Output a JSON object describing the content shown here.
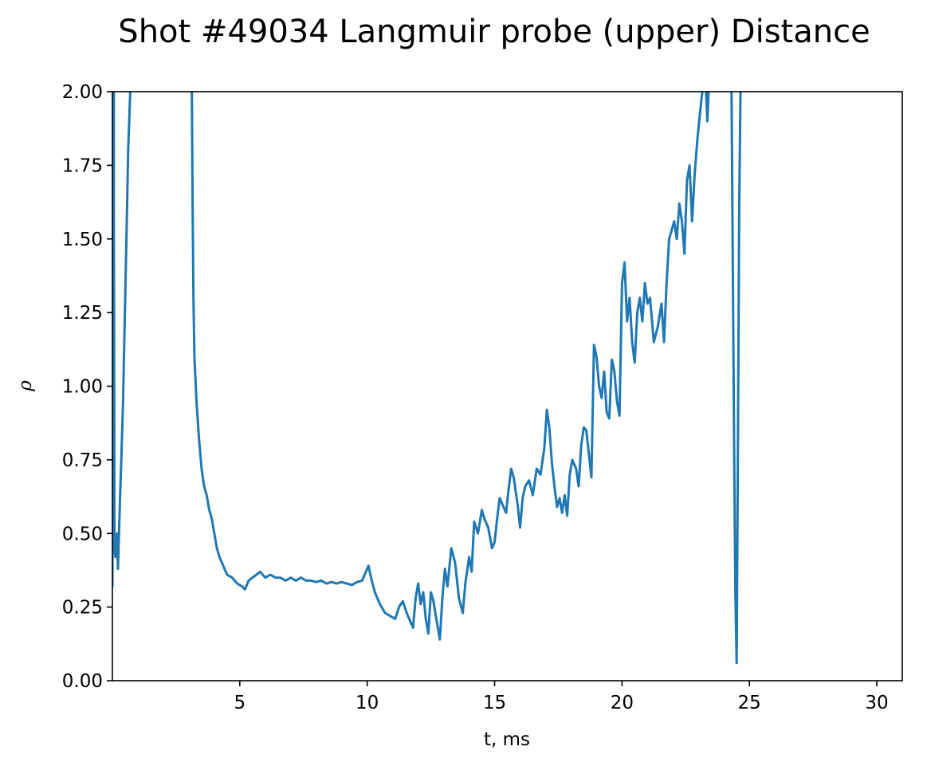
{
  "chart_data": {
    "type": "line",
    "title": "Shot #49034 Langmuir probe (upper) Distance",
    "xlabel": "t, ms",
    "ylabel": "ρ",
    "xlim": [
      0,
      31
    ],
    "ylim": [
      0,
      2
    ],
    "xticks": [
      5,
      10,
      15,
      20,
      25,
      30
    ],
    "yticks": [
      "0.00",
      "0.25",
      "0.50",
      "0.75",
      "1.00",
      "1.25",
      "1.50",
      "1.75",
      "2.00"
    ],
    "grid": false,
    "series": [
      {
        "color": "#1f77b4",
        "segments": [
          [
            [
              0.0,
              0.32
            ],
            [
              0.03,
              1.0
            ],
            [
              0.06,
              2.0
            ]
          ],
          [
            [
              0.05,
              2.0
            ],
            [
              0.08,
              0.45
            ],
            [
              0.12,
              0.42
            ],
            [
              0.18,
              0.5
            ],
            [
              0.22,
              0.38
            ],
            [
              0.26,
              0.5
            ],
            [
              0.3,
              0.62
            ],
            [
              0.35,
              0.75
            ],
            [
              0.42,
              0.95
            ],
            [
              0.48,
              1.2
            ],
            [
              0.55,
              1.5
            ],
            [
              0.62,
              1.8
            ],
            [
              0.7,
              2.0
            ]
          ],
          [
            [
              3.12,
              2.0
            ],
            [
              3.15,
              1.6
            ],
            [
              3.18,
              1.3
            ],
            [
              3.22,
              1.1
            ],
            [
              3.3,
              0.95
            ],
            [
              3.4,
              0.82
            ],
            [
              3.5,
              0.72
            ],
            [
              3.6,
              0.66
            ],
            [
              3.7,
              0.63
            ],
            [
              3.8,
              0.58
            ],
            [
              3.9,
              0.55
            ],
            [
              4.0,
              0.5
            ],
            [
              4.1,
              0.45
            ],
            [
              4.2,
              0.42
            ],
            [
              4.35,
              0.39
            ],
            [
              4.5,
              0.36
            ],
            [
              4.7,
              0.35
            ],
            [
              4.9,
              0.33
            ],
            [
              5.1,
              0.32
            ],
            [
              5.2,
              0.31
            ],
            [
              5.35,
              0.34
            ],
            [
              5.5,
              0.35
            ],
            [
              5.65,
              0.36
            ],
            [
              5.8,
              0.37
            ],
            [
              6.0,
              0.35
            ],
            [
              6.2,
              0.36
            ],
            [
              6.4,
              0.35
            ],
            [
              6.6,
              0.35
            ],
            [
              6.8,
              0.34
            ],
            [
              7.0,
              0.35
            ],
            [
              7.2,
              0.34
            ],
            [
              7.4,
              0.35
            ],
            [
              7.6,
              0.34
            ],
            [
              7.8,
              0.34
            ],
            [
              8.0,
              0.335
            ],
            [
              8.2,
              0.34
            ],
            [
              8.4,
              0.33
            ],
            [
              8.6,
              0.335
            ],
            [
              8.8,
              0.33
            ],
            [
              9.0,
              0.335
            ],
            [
              9.2,
              0.33
            ],
            [
              9.4,
              0.325
            ],
            [
              9.6,
              0.335
            ],
            [
              9.8,
              0.34
            ],
            [
              9.95,
              0.37
            ],
            [
              10.05,
              0.39
            ],
            [
              10.15,
              0.35
            ],
            [
              10.3,
              0.3
            ],
            [
              10.5,
              0.26
            ],
            [
              10.7,
              0.23
            ],
            [
              10.9,
              0.22
            ],
            [
              11.1,
              0.21
            ],
            [
              11.25,
              0.25
            ],
            [
              11.4,
              0.27
            ],
            [
              11.55,
              0.23
            ],
            [
              11.7,
              0.2
            ],
            [
              11.8,
              0.18
            ],
            [
              11.9,
              0.28
            ],
            [
              12.0,
              0.33
            ],
            [
              12.1,
              0.26
            ],
            [
              12.2,
              0.3
            ],
            [
              12.3,
              0.21
            ],
            [
              12.4,
              0.16
            ],
            [
              12.5,
              0.3
            ],
            [
              12.6,
              0.27
            ],
            [
              12.75,
              0.19
            ],
            [
              12.85,
              0.14
            ],
            [
              12.95,
              0.28
            ],
            [
              13.05,
              0.38
            ],
            [
              13.15,
              0.32
            ],
            [
              13.3,
              0.45
            ],
            [
              13.45,
              0.4
            ],
            [
              13.6,
              0.28
            ],
            [
              13.75,
              0.23
            ],
            [
              13.85,
              0.33
            ],
            [
              14.0,
              0.42
            ],
            [
              14.1,
              0.37
            ],
            [
              14.2,
              0.54
            ],
            [
              14.35,
              0.5
            ],
            [
              14.5,
              0.58
            ],
            [
              14.6,
              0.55
            ],
            [
              14.75,
              0.52
            ],
            [
              14.9,
              0.45
            ],
            [
              15.0,
              0.47
            ],
            [
              15.1,
              0.55
            ],
            [
              15.2,
              0.62
            ],
            [
              15.3,
              0.6
            ],
            [
              15.45,
              0.57
            ],
            [
              15.55,
              0.65
            ],
            [
              15.65,
              0.72
            ],
            [
              15.75,
              0.69
            ],
            [
              15.9,
              0.6
            ],
            [
              16.0,
              0.52
            ],
            [
              16.1,
              0.62
            ],
            [
              16.2,
              0.66
            ],
            [
              16.35,
              0.68
            ],
            [
              16.5,
              0.63
            ],
            [
              16.65,
              0.72
            ],
            [
              16.8,
              0.7
            ],
            [
              16.95,
              0.79
            ],
            [
              17.05,
              0.92
            ],
            [
              17.15,
              0.86
            ],
            [
              17.25,
              0.74
            ],
            [
              17.35,
              0.66
            ],
            [
              17.45,
              0.59
            ],
            [
              17.55,
              0.62
            ],
            [
              17.65,
              0.57
            ],
            [
              17.75,
              0.63
            ],
            [
              17.85,
              0.56
            ],
            [
              17.95,
              0.7
            ],
            [
              18.05,
              0.75
            ],
            [
              18.2,
              0.72
            ],
            [
              18.3,
              0.66
            ],
            [
              18.4,
              0.8
            ],
            [
              18.5,
              0.86
            ],
            [
              18.6,
              0.85
            ],
            [
              18.7,
              0.77
            ],
            [
              18.8,
              0.69
            ],
            [
              18.9,
              1.14
            ],
            [
              19.0,
              1.1
            ],
            [
              19.1,
              1.0
            ],
            [
              19.2,
              0.96
            ],
            [
              19.3,
              1.05
            ],
            [
              19.4,
              0.91
            ],
            [
              19.5,
              0.89
            ],
            [
              19.6,
              1.09
            ],
            [
              19.7,
              1.05
            ],
            [
              19.8,
              0.95
            ],
            [
              19.9,
              0.9
            ],
            [
              20.0,
              1.35
            ],
            [
              20.1,
              1.42
            ],
            [
              20.2,
              1.22
            ],
            [
              20.3,
              1.3
            ],
            [
              20.4,
              1.15
            ],
            [
              20.5,
              1.08
            ],
            [
              20.6,
              1.25
            ],
            [
              20.7,
              1.3
            ],
            [
              20.8,
              1.22
            ],
            [
              20.9,
              1.35
            ],
            [
              21.0,
              1.28
            ],
            [
              21.1,
              1.3
            ],
            [
              21.25,
              1.15
            ],
            [
              21.4,
              1.2
            ],
            [
              21.55,
              1.28
            ],
            [
              21.65,
              1.15
            ],
            [
              21.75,
              1.35
            ],
            [
              21.85,
              1.5
            ],
            [
              21.95,
              1.53
            ],
            [
              22.05,
              1.56
            ],
            [
              22.15,
              1.5
            ],
            [
              22.25,
              1.62
            ],
            [
              22.35,
              1.56
            ],
            [
              22.45,
              1.45
            ],
            [
              22.55,
              1.7
            ],
            [
              22.65,
              1.75
            ],
            [
              22.75,
              1.56
            ],
            [
              22.85,
              1.72
            ],
            [
              22.95,
              1.83
            ],
            [
              23.05,
              1.92
            ],
            [
              23.15,
              2.0
            ]
          ],
          [
            [
              23.3,
              2.0
            ],
            [
              23.35,
              1.9
            ],
            [
              23.4,
              2.0
            ]
          ],
          [
            [
              24.3,
              2.0
            ],
            [
              24.35,
              1.4
            ],
            [
              24.4,
              0.8
            ],
            [
              24.45,
              0.3
            ],
            [
              24.5,
              0.06
            ],
            [
              24.55,
              0.8
            ],
            [
              24.6,
              1.6
            ],
            [
              24.65,
              2.0
            ]
          ]
        ]
      }
    ]
  }
}
